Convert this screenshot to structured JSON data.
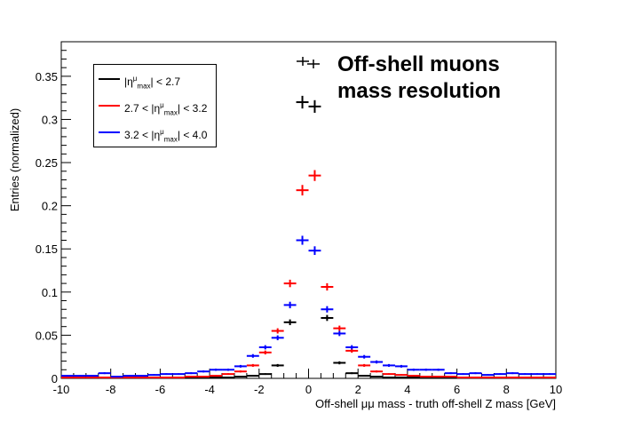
{
  "chart_data": {
    "type": "scatter",
    "title": "Off-shell muons mass resolution",
    "title_lines": [
      "Off-shell muons",
      "mass resolution"
    ],
    "xlabel": "Off-shell μμ mass - truth off-shell Z mass [GeV]",
    "ylabel": "Entries (normalized)",
    "xlim": [
      -10,
      10
    ],
    "ylim": [
      0,
      0.39
    ],
    "x_ticks": [
      "-10",
      "-8",
      "-6",
      "-4",
      "-2",
      "0",
      "2",
      "4",
      "6",
      "8",
      "10"
    ],
    "y_ticks": [
      "0",
      "0.05",
      "0.1",
      "0.15",
      "0.2",
      "0.25",
      "0.3",
      "0.35"
    ],
    "grid": false,
    "legend_position": "top-left",
    "bin_width": 0.5,
    "x": [
      -9.75,
      -9.25,
      -8.75,
      -8.25,
      -7.75,
      -7.25,
      -6.75,
      -6.25,
      -5.75,
      -5.25,
      -4.75,
      -4.25,
      -3.75,
      -3.25,
      -2.75,
      -2.25,
      -1.75,
      -1.25,
      -0.75,
      -0.25,
      0.25,
      0.75,
      1.25,
      1.75,
      2.25,
      2.75,
      3.25,
      3.75,
      4.25,
      4.75,
      5.25,
      5.75,
      6.25,
      6.75,
      7.25,
      7.75,
      8.25,
      8.75,
      9.25,
      9.75
    ],
    "series": [
      {
        "name": "|η^μ_max| < 2.7",
        "color": "#000000",
        "values": [
          0.001,
          0.001,
          0.001,
          0.001,
          0.001,
          0.001,
          0.001,
          0.001,
          0.001,
          0.001,
          0.001,
          0.001,
          0.001,
          0.001,
          0.002,
          0.003,
          0.005,
          0.015,
          0.065,
          0.32,
          0.315,
          0.07,
          0.018,
          0.006,
          0.003,
          0.002,
          0.001,
          0.001,
          0.001,
          0.001,
          0.001,
          0.001,
          0.001,
          0.001,
          0.001,
          0.001,
          0.001,
          0.001,
          0.001,
          0.001
        ]
      },
      {
        "name": "2.7 < |η^μ_max| < 3.2",
        "color": "#ff0000",
        "values": [
          0.001,
          0.001,
          0.001,
          0.001,
          0.001,
          0.001,
          0.001,
          0.001,
          0.001,
          0.001,
          0.002,
          0.002,
          0.003,
          0.005,
          0.008,
          0.015,
          0.03,
          0.055,
          0.11,
          0.218,
          0.235,
          0.106,
          0.058,
          0.032,
          0.015,
          0.008,
          0.005,
          0.004,
          0.003,
          0.002,
          0.002,
          0.002,
          0.001,
          0.001,
          0.001,
          0.001,
          0.001,
          0.001,
          0.001,
          0.001
        ]
      },
      {
        "name": "3.2 < |η^μ_max| < 4.0",
        "color": "#0000ff",
        "values": [
          0.003,
          0.003,
          0.003,
          0.006,
          0.002,
          0.003,
          0.003,
          0.004,
          0.005,
          0.005,
          0.006,
          0.008,
          0.01,
          0.01,
          0.014,
          0.026,
          0.036,
          0.047,
          0.085,
          0.16,
          0.148,
          0.08,
          0.052,
          0.036,
          0.025,
          0.019,
          0.015,
          0.014,
          0.01,
          0.01,
          0.01,
          0.006,
          0.005,
          0.006,
          0.004,
          0.005,
          0.006,
          0.005,
          0.005,
          0.005
        ]
      }
    ]
  },
  "legend": {
    "entries": [
      {
        "pre": "|η",
        "sup": "μ",
        "sub": "max",
        "post": "| < 2.7",
        "color": "#000000"
      },
      {
        "pre": "2.7 < |η",
        "sup": "μ",
        "sub": "max",
        "post": "| < 3.2",
        "color": "#ff0000"
      },
      {
        "pre": "3.2 < |η",
        "sup": "μ",
        "sub": "max",
        "post": "| < 4.0",
        "color": "#0000ff"
      }
    ]
  }
}
